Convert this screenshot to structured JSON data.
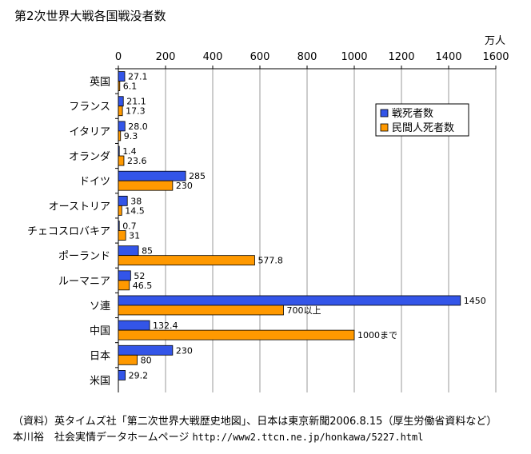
{
  "chart_data": {
    "type": "bar",
    "orientation": "horizontal",
    "title": "第2次世界大戦各国戦没者数",
    "unit": "万人",
    "xlim": [
      0,
      1600
    ],
    "xticks": [
      0,
      200,
      400,
      600,
      800,
      1000,
      1200,
      1400,
      1600
    ],
    "grid": true,
    "legend_position": "right",
    "categories": [
      "英国",
      "フランス",
      "イタリア",
      "オランダ",
      "ドイツ",
      "オーストリア",
      "チェコスロバキア",
      "ポーランド",
      "ルーマニア",
      "ソ連",
      "中国",
      "日本",
      "米国"
    ],
    "series": [
      {
        "name": "戦死者数",
        "color": "#3355e8",
        "values": [
          27.1,
          21.1,
          28.0,
          1.4,
          285,
          38,
          0.7,
          85,
          52,
          1450,
          132.4,
          230,
          29.2
        ],
        "labels": [
          "27.1",
          "21.1",
          "28.0",
          "1.4",
          "285",
          "38",
          "0.7",
          "85",
          "52",
          "1450",
          "132.4",
          "230",
          "29.2"
        ]
      },
      {
        "name": "民間人死者数",
        "color": "#ff9900",
        "values": [
          6.1,
          17.3,
          9.3,
          23.6,
          230,
          14.5,
          31,
          577.8,
          46.5,
          700,
          1000,
          80,
          null
        ],
        "labels": [
          "6.1",
          "17.3",
          "9.3",
          "23.6",
          "230",
          "14.5",
          "31",
          "577.8",
          "46.5",
          "700以上",
          "1000まで",
          "80",
          ""
        ]
      }
    ]
  },
  "source": {
    "line1": "（資料）英タイムズ社「第二次世界大戦歴史地図」、日本は東京新聞2006.8.15（厚生労働省資料など）",
    "line2_author": "本川裕　社会実情データホームページ",
    "line2_url": "http://www2.ttcn.ne.jp/honkawa/5227.html"
  }
}
